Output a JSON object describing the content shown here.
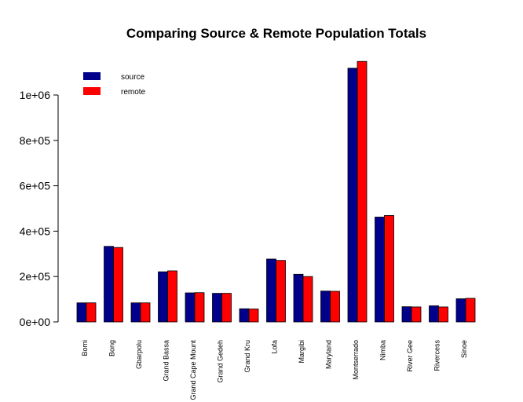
{
  "chart_data": {
    "type": "bar",
    "title": "Comparing Source & Remote Population Totals",
    "xlabel": "",
    "ylabel": "",
    "ylim": [
      0,
      1150000
    ],
    "yticks": [
      0,
      200000,
      400000,
      600000,
      800000,
      1000000
    ],
    "ytick_labels": [
      "0e+00",
      "2e+05",
      "4e+05",
      "6e+05",
      "8e+05",
      "1e+06"
    ],
    "grid": false,
    "legend_position": "top-left",
    "categories": [
      "Bomi",
      "Bong",
      "Gbarpolu",
      "Grand Bassa",
      "Grand Cape Mount",
      "Grand Gedeh",
      "Grand Kru",
      "Lofa",
      "Margibi",
      "Maryland",
      "Montserrado",
      "Nimba",
      "River Gee",
      "Rivercess",
      "Sinoe"
    ],
    "series": [
      {
        "name": "source",
        "color": "#00008B",
        "values": [
          84000,
          333000,
          84000,
          221000,
          128000,
          126000,
          58000,
          277000,
          210000,
          136000,
          1118000,
          462000,
          67000,
          71000,
          102000
        ]
      },
      {
        "name": "remote",
        "color": "#FF0000",
        "values": [
          84000,
          328000,
          84000,
          225000,
          129000,
          126000,
          57000,
          271000,
          200000,
          135000,
          1148000,
          469000,
          66000,
          66000,
          104000
        ]
      }
    ]
  }
}
